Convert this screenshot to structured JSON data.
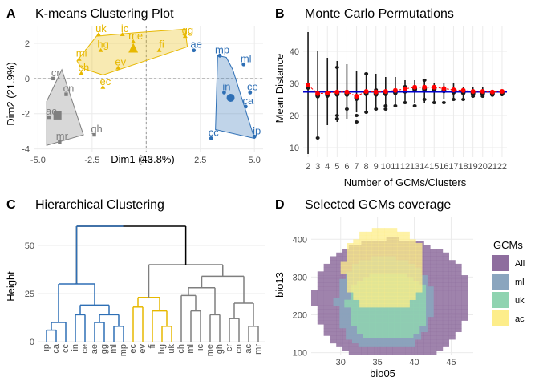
{
  "panels": {
    "A": {
      "letter": "A",
      "title": "K-means Clustering Plot"
    },
    "B": {
      "letter": "B",
      "title": "Monte Carlo Permutations"
    },
    "C": {
      "letter": "C",
      "title": "Hierarchical Clustering"
    },
    "D": {
      "letter": "D",
      "title": "Selected GCMs coverage"
    }
  },
  "chart_data": [
    {
      "panel": "A",
      "type": "scatter",
      "title": "K-means Clustering Plot",
      "xlabel": "Dim1 (43.8%)",
      "ylabel": "Dim2 (21.9%)",
      "xlim": [
        -5.2,
        5.4
      ],
      "ylim": [
        -4.2,
        3.0
      ],
      "xticks": [
        -5.0,
        -2.5,
        0.0,
        2.5,
        5.0
      ],
      "xtick_labels": [
        "-5.0",
        "-2.5",
        "0.0",
        "2.5",
        "5.0"
      ],
      "yticks": [
        -4,
        -2,
        0,
        2
      ],
      "yticklabels": [
        "-4",
        "-2",
        "0",
        "2"
      ],
      "grid": true,
      "clusters": [
        {
          "color": "#E7B800",
          "hull": [
            [
              -3.2,
              1.0
            ],
            [
              -2.3,
              2.4
            ],
            [
              -0.5,
              2.6
            ],
            [
              1.8,
              2.8
            ],
            [
              1.9,
              1.8
            ],
            [
              -2.0,
              0.2
            ],
            [
              -3.0,
              0.6
            ]
          ],
          "centroid": [
            -0.6,
            1.7
          ],
          "points": [
            {
              "label": "uk",
              "x": -2.2,
              "y": 2.5
            },
            {
              "label": "ic",
              "x": -1.1,
              "y": 2.5
            },
            {
              "label": "gg",
              "x": 1.8,
              "y": 2.4
            },
            {
              "label": "me",
              "x": -0.6,
              "y": 2.1
            },
            {
              "label": "hg",
              "x": -2.1,
              "y": 1.6
            },
            {
              "label": "fi",
              "x": 0.6,
              "y": 1.6
            },
            {
              "label": "mi",
              "x": -3.1,
              "y": 1.1
            },
            {
              "label": "ev",
              "x": -1.3,
              "y": 0.6
            },
            {
              "label": "ch",
              "x": -3.0,
              "y": 0.3
            },
            {
              "label": "ec",
              "x": -2.0,
              "y": -0.5
            }
          ]
        },
        {
          "color": "#2E6FB5",
          "hull": [
            [
              3.3,
              1.3
            ],
            [
              3.7,
              1.2
            ],
            [
              4.0,
              0.5
            ],
            [
              5.0,
              -3.4
            ],
            [
              3.2,
              -2.9
            ]
          ],
          "centroid": [
            3.9,
            -1.1
          ],
          "points": [
            {
              "label": "ae",
              "x": 2.2,
              "y": 1.6
            },
            {
              "label": "mp",
              "x": 3.4,
              "y": 1.3
            },
            {
              "label": "ml",
              "x": 4.5,
              "y": 0.8
            },
            {
              "label": "in",
              "x": 3.6,
              "y": -0.8
            },
            {
              "label": "ce",
              "x": 4.8,
              "y": -0.8
            },
            {
              "label": "ca",
              "x": 4.6,
              "y": -1.6
            },
            {
              "label": "cc",
              "x": 3.0,
              "y": -3.4
            },
            {
              "label": "ip",
              "x": 5.0,
              "y": -3.3
            }
          ]
        },
        {
          "color": "#7F7F7F",
          "hull": [
            [
              -3.9,
              0.5
            ],
            [
              -4.6,
              -1.3
            ],
            [
              -4.6,
              -3.8
            ],
            [
              -2.9,
              -3.2
            ]
          ],
          "centroid": [
            -4.1,
            -2.1
          ],
          "points": [
            {
              "label": "cr",
              "x": -4.3,
              "y": 0.0
            },
            {
              "label": "cn",
              "x": -3.7,
              "y": -0.9
            },
            {
              "label": "ac",
              "x": -4.5,
              "y": -2.2
            },
            {
              "label": "gh",
              "x": -2.4,
              "y": -3.2
            },
            {
              "label": "mr",
              "x": -4.0,
              "y": -3.6
            }
          ]
        }
      ]
    },
    {
      "panel": "B",
      "type": "violin",
      "title": "Monte Carlo Permutations",
      "xlabel": "Number of GCMs/Clusters",
      "ylabel": "Mean Distance",
      "categories": [
        "2",
        "3",
        "4",
        "5",
        "6",
        "7",
        "8",
        "9",
        "10",
        "11",
        "12",
        "13",
        "14",
        "15",
        "16",
        "17",
        "18",
        "19",
        "20",
        "21",
        "22"
      ],
      "ylim": [
        7,
        48
      ],
      "yticks": [
        10,
        20,
        30,
        40
      ],
      "yticklabels": [
        "10",
        "20",
        "30",
        "40"
      ],
      "reference_line": 27.3,
      "reference_color": "#0000CD",
      "grid": true,
      "series": [
        {
          "name": "range",
          "low": [
            8,
            13,
            17,
            18,
            19,
            21,
            21,
            22,
            23,
            23,
            24,
            24,
            24,
            24,
            25,
            25,
            25,
            26,
            26,
            26,
            26
          ],
          "high": [
            46,
            40,
            38,
            37,
            36,
            34,
            33,
            33,
            32,
            32,
            31,
            31,
            31,
            30,
            30,
            30,
            29,
            29,
            29,
            28,
            28
          ]
        },
        {
          "name": "mean",
          "color": "#FF0000",
          "values": [
            29.5,
            26.8,
            27.0,
            27.3,
            27.3,
            26.0,
            27.5,
            27.3,
            27.5,
            27.8,
            28.3,
            28.8,
            28.8,
            28.8,
            28.4,
            28.0,
            27.8,
            27.5,
            27.5,
            27.3,
            27.5
          ]
        },
        {
          "name": "outliers",
          "color": "#1a1a1a",
          "points": [
            [
              3,
              13
            ],
            [
              5,
              35
            ],
            [
              5,
              19
            ],
            [
              5,
              20
            ],
            [
              6,
              22
            ],
            [
              7,
              18
            ],
            [
              7,
              20
            ],
            [
              8,
              33
            ],
            [
              8,
              21
            ],
            [
              9,
              22
            ],
            [
              9,
              28
            ],
            [
              10,
              22
            ],
            [
              10,
              23
            ],
            [
              11,
              23
            ],
            [
              12,
              29
            ],
            [
              12,
              24
            ],
            [
              13,
              23
            ],
            [
              14,
              25
            ],
            [
              14,
              31
            ],
            [
              15,
              24
            ],
            [
              16,
              24
            ],
            [
              17,
              25
            ],
            [
              18,
              25
            ],
            [
              19,
              26
            ],
            [
              20,
              26
            ]
          ]
        }
      ]
    },
    {
      "panel": "C",
      "type": "dendrogram",
      "title": "Hierarchical Clustering",
      "ylabel": "Height",
      "ylim": [
        0,
        65
      ],
      "yticks": [
        0,
        25,
        50
      ],
      "yticklabels": [
        "0",
        "25",
        "50"
      ],
      "leaves": [
        {
          "label": "ip",
          "color": "#2E6FB5"
        },
        {
          "label": "ca",
          "color": "#2E6FB5"
        },
        {
          "label": "cc",
          "color": "#2E6FB5"
        },
        {
          "label": "in",
          "color": "#2E6FB5"
        },
        {
          "label": "ce",
          "color": "#2E6FB5"
        },
        {
          "label": "ae",
          "color": "#2E6FB5"
        },
        {
          "label": "gg",
          "color": "#2E6FB5"
        },
        {
          "label": "ml",
          "color": "#2E6FB5"
        },
        {
          "label": "mp",
          "color": "#2E6FB5"
        },
        {
          "label": "ec",
          "color": "#E7B800"
        },
        {
          "label": "ev",
          "color": "#E7B800"
        },
        {
          "label": "fi",
          "color": "#E7B800"
        },
        {
          "label": "hg",
          "color": "#E7B800"
        },
        {
          "label": "uk",
          "color": "#E7B800"
        },
        {
          "label": "ch",
          "color": "#7F7F7F"
        },
        {
          "label": "mi",
          "color": "#7F7F7F"
        },
        {
          "label": "ic",
          "color": "#7F7F7F"
        },
        {
          "label": "me",
          "color": "#7F7F7F"
        },
        {
          "label": "gh",
          "color": "#7F7F7F"
        },
        {
          "label": "cr",
          "color": "#7F7F7F"
        },
        {
          "label": "cn",
          "color": "#7F7F7F"
        },
        {
          "label": "ac",
          "color": "#7F7F7F"
        },
        {
          "label": "mr",
          "color": "#7F7F7F"
        }
      ]
    },
    {
      "panel": "D",
      "type": "heatmap",
      "title": "Selected GCMs coverage",
      "xlabel": "bio05",
      "ylabel": "bio13",
      "xlim": [
        26,
        48
      ],
      "ylim": [
        95,
        460
      ],
      "xticks": [
        30,
        35,
        40,
        45
      ],
      "xtick_labels": [
        "30",
        "35",
        "40",
        "45"
      ],
      "yticks": [
        100,
        200,
        300,
        400
      ],
      "yticklabels": [
        "100",
        "200",
        "300",
        "400"
      ],
      "legend_title": "GCMs",
      "legend_position": "right",
      "legend": [
        {
          "label": "All",
          "color": "#8E6D9E"
        },
        {
          "label": "ml",
          "color": "#8AA5BE"
        },
        {
          "label": "uk",
          "color": "#8FD3B0"
        },
        {
          "label": "ac",
          "color": "#FDED8A"
        }
      ]
    }
  ]
}
